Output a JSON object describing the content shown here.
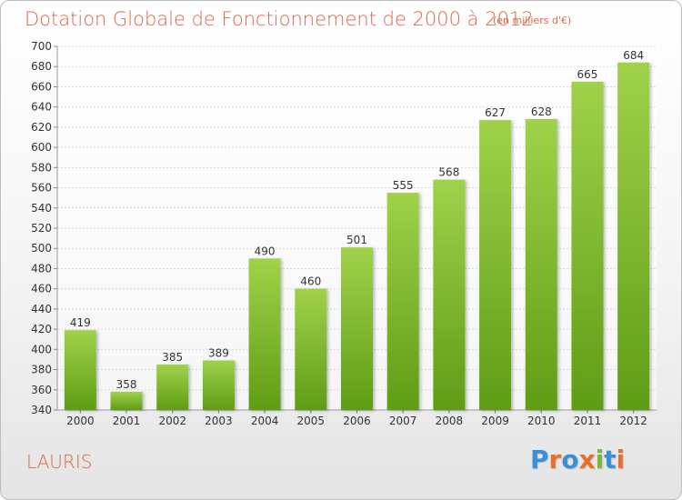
{
  "header": {
    "title": "Dotation Globale de Fonctionnement de 2000 à 2012",
    "unit": "(en milliers d'€)"
  },
  "footer": {
    "commune": "LAURIS",
    "logo_text": "Proxiti",
    "logo_colors": [
      "#3a8fd6",
      "#e8702a",
      "#3a8fd6",
      "#e8702a",
      "#7ab83a",
      "#3a8fd6",
      "#e8702a"
    ]
  },
  "colors": {
    "title": "#d9684a",
    "bar_top": "#9fd24a",
    "bar_bottom": "#5f9c16",
    "grid": "#d8d8d8",
    "axis_text": "#333333"
  },
  "chart_data": {
    "type": "bar",
    "categories": [
      "2000",
      "2001",
      "2002",
      "2003",
      "2004",
      "2005",
      "2006",
      "2007",
      "2008",
      "2009",
      "2010",
      "2011",
      "2012"
    ],
    "values": [
      419,
      358,
      385,
      389,
      490,
      460,
      501,
      555,
      568,
      627,
      628,
      665,
      684
    ],
    "ylim": [
      340,
      700
    ],
    "ytick_step": 20,
    "grid": true,
    "data_labels": true
  }
}
